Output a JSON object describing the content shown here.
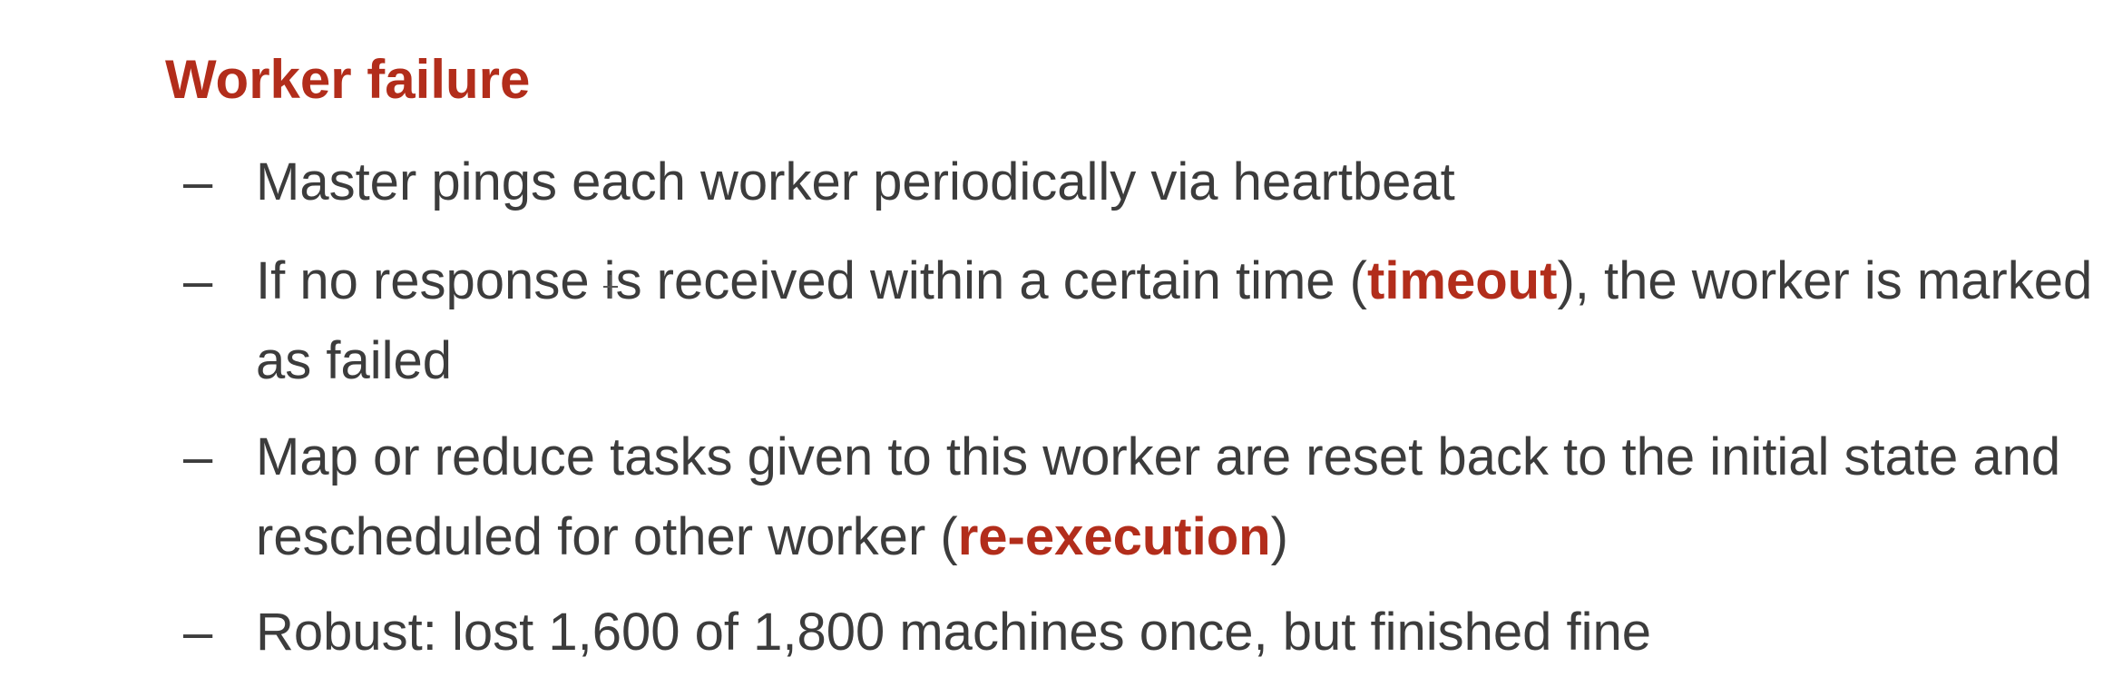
{
  "heading": "Worker failure",
  "bullets": [
    {
      "dash": "–",
      "text": "Master pings each worker periodically via heartbeat"
    },
    {
      "dash": "–",
      "before": "If no response is received within a certain time (",
      "highlight": "timeout",
      "after": "), the worker is marked as failed"
    },
    {
      "dash": "–",
      "before": "Map or reduce tasks given to this worker are reset back to the initial state and rescheduled for other worker (",
      "highlight": "re-execution",
      "after": ")"
    },
    {
      "dash": "–",
      "text": "Robust: lost 1,600 of 1,800 machines once, but finished fine"
    }
  ],
  "colors": {
    "accent": "#b22d1b",
    "body_text": "#3c3c3c",
    "background": "#ffffff"
  },
  "cursor_icon": "text-cursor-icon"
}
